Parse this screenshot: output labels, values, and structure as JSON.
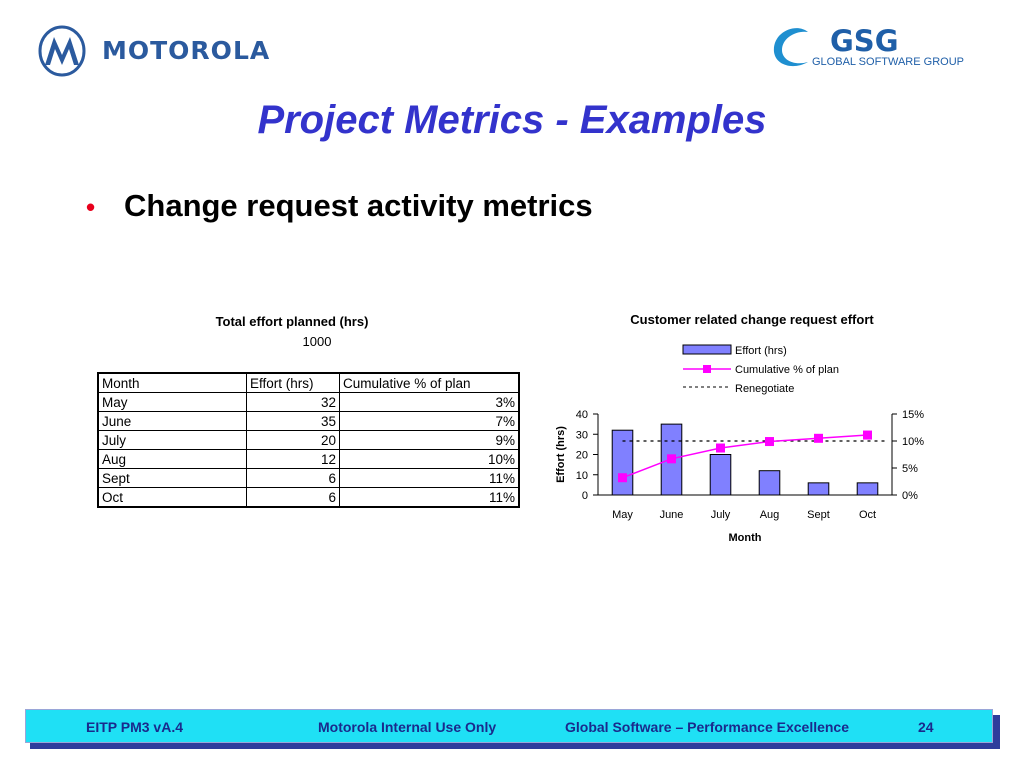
{
  "header": {
    "company_name": "MOTOROLA",
    "group_logo_text": "GSG",
    "group_logo_subtext": "GLOBAL SOFTWARE GROUP",
    "colors": {
      "brand_blue": "#2b5a9e",
      "title_blue": "#3333cc",
      "bullet_red": "#e8001c"
    }
  },
  "slide": {
    "title": "Project Metrics - Examples",
    "bullet": "Change request activity metrics"
  },
  "table": {
    "caption": "Total effort planned (hrs)",
    "total": "1000",
    "headers": [
      "Month",
      "Effort (hrs)",
      "Cumulative % of plan"
    ],
    "rows": [
      [
        "May",
        "32",
        "3%"
      ],
      [
        "June",
        "35",
        "7%"
      ],
      [
        "July",
        "20",
        "9%"
      ],
      [
        "Aug",
        "12",
        "10%"
      ],
      [
        "Sept",
        "6",
        "11%"
      ],
      [
        "Oct",
        "6",
        "11%"
      ]
    ]
  },
  "chart_data": {
    "type": "bar",
    "title": "Customer related change request effort",
    "xlabel": "Month",
    "ylabel": "Effort (hrs)",
    "categories": [
      "May",
      "June",
      "July",
      "Aug",
      "Sept",
      "Oct"
    ],
    "ylim": [
      0,
      40
    ],
    "yticks": [
      "0",
      "10",
      "20",
      "30",
      "40"
    ],
    "y2lim": [
      0,
      15
    ],
    "y2ticks": [
      "0%",
      "5%",
      "10%",
      "15%"
    ],
    "legend_position": "top",
    "grid": false,
    "series": [
      {
        "name": "Effort (hrs)",
        "type": "bar",
        "axis": "left",
        "values": [
          32,
          35,
          20,
          12,
          6,
          6
        ],
        "color": "#8080ff"
      },
      {
        "name": "Cumulative % of plan",
        "type": "line",
        "axis": "right",
        "values": [
          3.2,
          6.7,
          8.7,
          9.9,
          10.5,
          11.1
        ],
        "color": "#ff00ff"
      },
      {
        "name": "Renegotiate",
        "type": "line",
        "axis": "right",
        "style": "dotted",
        "values": [
          10,
          10,
          10,
          10,
          10,
          10
        ],
        "color": "#000000"
      }
    ]
  },
  "footer": {
    "left": "EITP PM3 vA.4",
    "middle": "Motorola Internal Use Only",
    "right": "Global Software – Performance Excellence",
    "page": "24",
    "bar_color": "#1fe0f5"
  }
}
